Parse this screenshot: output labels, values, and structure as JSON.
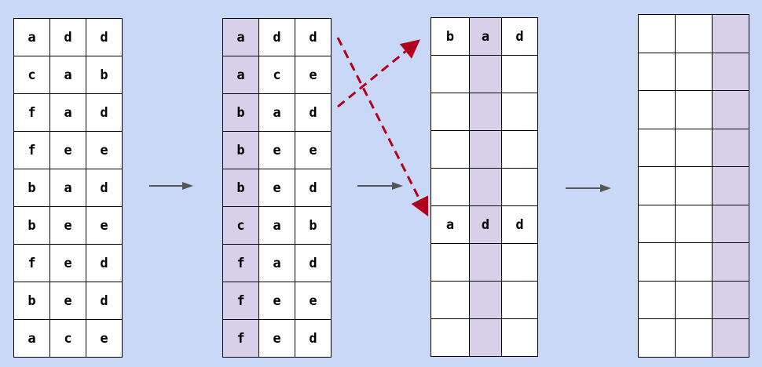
{
  "colors": {
    "background": "#c9d8f6",
    "highlight": "#d8d0e8",
    "flow_arrow": "#555555",
    "swap_arrow": "#b0001e"
  },
  "grid1": {
    "rows": [
      [
        "a",
        "d",
        "d"
      ],
      [
        "c",
        "a",
        "b"
      ],
      [
        "f",
        "a",
        "d"
      ],
      [
        "f",
        "e",
        "e"
      ],
      [
        "b",
        "a",
        "d"
      ],
      [
        "b",
        "e",
        "e"
      ],
      [
        "f",
        "e",
        "d"
      ],
      [
        "b",
        "e",
        "d"
      ],
      [
        "a",
        "c",
        "e"
      ]
    ],
    "highlight_col": -1
  },
  "grid2": {
    "rows": [
      [
        "a",
        "d",
        "d"
      ],
      [
        "a",
        "c",
        "e"
      ],
      [
        "b",
        "a",
        "d"
      ],
      [
        "b",
        "e",
        "e"
      ],
      [
        "b",
        "e",
        "d"
      ],
      [
        "c",
        "a",
        "b"
      ],
      [
        "f",
        "a",
        "d"
      ],
      [
        "f",
        "e",
        "e"
      ],
      [
        "f",
        "e",
        "d"
      ]
    ],
    "highlight_col": 0
  },
  "grid3": {
    "rows": [
      [
        "b",
        "a",
        "d"
      ],
      [
        "",
        "",
        ""
      ],
      [
        "",
        "",
        ""
      ],
      [
        "",
        "",
        ""
      ],
      [
        "",
        "",
        ""
      ],
      [
        "a",
        "d",
        "d"
      ],
      [
        "",
        "",
        ""
      ],
      [
        "",
        "",
        ""
      ],
      [
        "",
        "",
        ""
      ]
    ],
    "highlight_col": 1
  },
  "grid4": {
    "rows": [
      [
        "",
        "",
        ""
      ],
      [
        "",
        "",
        ""
      ],
      [
        "",
        "",
        ""
      ],
      [
        "",
        "",
        ""
      ],
      [
        "",
        "",
        ""
      ],
      [
        "",
        "",
        ""
      ],
      [
        "",
        "",
        ""
      ],
      [
        "",
        "",
        ""
      ],
      [
        "",
        "",
        ""
      ]
    ],
    "highlight_col": 2
  }
}
